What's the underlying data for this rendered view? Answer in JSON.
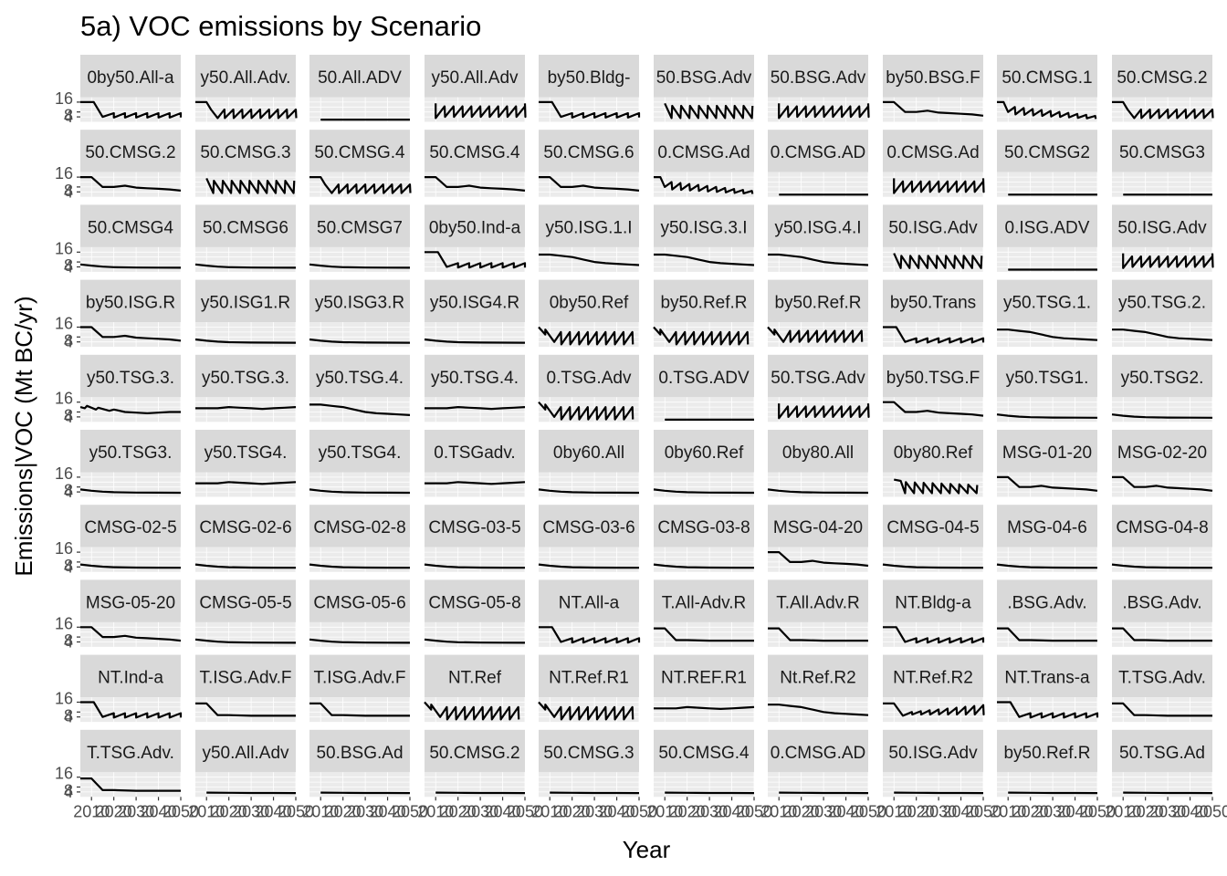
{
  "chart_data": {
    "type": "line",
    "title": "5a) VOC emissions by Scenario",
    "xlabel": "Year",
    "ylabel": "Emissions|VOC (Mt BC/yr)",
    "y_ticks": [
      "16",
      "4",
      "8"
    ],
    "x_ticks": [
      "2010",
      "2020",
      "2030",
      "2040",
      "2050"
    ],
    "ylim": [
      0,
      20
    ],
    "xlim": [
      2005,
      2050
    ],
    "grid": true,
    "facet_rows": 10,
    "facet_cols": 10,
    "panels": [
      {
        "label": "0by50.All-a",
        "type": "cut"
      },
      {
        "label": "y50.All.Adv.",
        "type": "sawC"
      },
      {
        "label": "50.All.ADV",
        "type": "flat"
      },
      {
        "label": "y50.All.Adv",
        "type": "sawU"
      },
      {
        "label": "by50.Bldg-",
        "type": "cut"
      },
      {
        "label": "50.BSG.Adv",
        "type": "sawF"
      },
      {
        "label": "50.BSG.Adv",
        "type": "sawU"
      },
      {
        "label": "by50.BSG.F",
        "type": "smooth"
      },
      {
        "label": "50.CMSG.1",
        "type": "sawD"
      },
      {
        "label": "50.CMSG.2",
        "type": "sawC"
      },
      {
        "label": "50.CMSG.2",
        "type": "smooth"
      },
      {
        "label": "50.CMSG.3",
        "type": "sawF"
      },
      {
        "label": "50.CMSG.4",
        "type": "sawC"
      },
      {
        "label": "50.CMSG.4",
        "type": "smooth"
      },
      {
        "label": "50.CMSG.6",
        "type": "smooth"
      },
      {
        "label": "0.CMSG.Ad",
        "type": "sawD"
      },
      {
        "label": "0.CMSG.AD",
        "type": "flat"
      },
      {
        "label": "0.CMSG.Ad",
        "type": "sawU"
      },
      {
        "label": "50.CMSG2",
        "type": "flat"
      },
      {
        "label": "50.CMSG3",
        "type": "flat"
      },
      {
        "label": "50.CMSG4",
        "type": "flatHi"
      },
      {
        "label": "50.CMSG6",
        "type": "flatHi"
      },
      {
        "label": "50.CMSG7",
        "type": "flatHi"
      },
      {
        "label": "0by50.Ind-a",
        "type": "cut"
      },
      {
        "label": "y50.ISG.1.I",
        "type": "hump"
      },
      {
        "label": "y50.ISG.3.I",
        "type": "hump"
      },
      {
        "label": "y50.ISG.4.I",
        "type": "hump"
      },
      {
        "label": "50.ISG.Adv",
        "type": "sawF"
      },
      {
        "label": "0.ISG.ADV",
        "type": "flat"
      },
      {
        "label": "50.ISG.Adv",
        "type": "sawU"
      },
      {
        "label": "by50.ISG.R",
        "type": "smooth"
      },
      {
        "label": "y50.ISG1.R",
        "type": "flatHi"
      },
      {
        "label": "y50.ISG3.R",
        "type": "flatHi"
      },
      {
        "label": "y50.ISG4.R",
        "type": "flatHi"
      },
      {
        "label": "0by50.Ref",
        "type": "sawRef"
      },
      {
        "label": "by50.Ref.R",
        "type": "sawRef"
      },
      {
        "label": "by50.Ref.R",
        "type": "sawRefU"
      },
      {
        "label": "by50.Trans",
        "type": "cut"
      },
      {
        "label": "y50.TSG.1.",
        "type": "hump"
      },
      {
        "label": "y50.TSG.2.",
        "type": "hump"
      },
      {
        "label": "y50.TSG.3.",
        "type": "sawSmall"
      },
      {
        "label": "y50.TSG.3.",
        "type": "level"
      },
      {
        "label": "y50.TSG.4.",
        "type": "hump"
      },
      {
        "label": "y50.TSG.4.",
        "type": "level"
      },
      {
        "label": "0.TSG.Adv",
        "type": "sawRef"
      },
      {
        "label": "0.TSG.ADV",
        "type": "flat"
      },
      {
        "label": "50.TSG.Adv",
        "type": "sawU"
      },
      {
        "label": "by50.TSG.F",
        "type": "smooth"
      },
      {
        "label": "y50.TSG1.",
        "type": "flatHi"
      },
      {
        "label": "y50.TSG2.",
        "type": "flatHi"
      },
      {
        "label": "y50.TSG3.",
        "type": "flatHi"
      },
      {
        "label": "y50.TSG4.",
        "type": "level"
      },
      {
        "label": "y50.TSG4.",
        "type": "flatHi"
      },
      {
        "label": "0.TSGadv.",
        "type": "level"
      },
      {
        "label": "0by60.All",
        "type": "flatHi"
      },
      {
        "label": "0by60.Ref",
        "type": "flatHi"
      },
      {
        "label": "0by80.All",
        "type": "flatHi"
      },
      {
        "label": "0by80.Ref",
        "type": "sawDec"
      },
      {
        "label": "MSG-01-20",
        "type": "smooth"
      },
      {
        "label": "MSG-02-20",
        "type": "smooth"
      },
      {
        "label": "CMSG-02-5",
        "type": "flatHi"
      },
      {
        "label": "CMSG-02-6",
        "type": "flatHi"
      },
      {
        "label": "CMSG-02-8",
        "type": "flatHi"
      },
      {
        "label": "CMSG-03-5",
        "type": "flatHi"
      },
      {
        "label": "CMSG-03-6",
        "type": "flatHi"
      },
      {
        "label": "CMSG-03-8",
        "type": "flatHi"
      },
      {
        "label": "MSG-04-20",
        "type": "smooth"
      },
      {
        "label": "CMSG-04-5",
        "type": "flatHi"
      },
      {
        "label": "MSG-04-6",
        "type": "flatHi"
      },
      {
        "label": "CMSG-04-8",
        "type": "flatHi"
      },
      {
        "label": "MSG-05-20",
        "type": "smooth"
      },
      {
        "label": "CMSG-05-5",
        "type": "flatHi"
      },
      {
        "label": "CMSG-05-6",
        "type": "flatHi"
      },
      {
        "label": "CMSG-05-8",
        "type": "flatHi"
      },
      {
        "label": "NT.All-a",
        "type": "cut"
      },
      {
        "label": "T.All-Adv.R",
        "type": "step"
      },
      {
        "label": "T.All.Adv.R",
        "type": "step"
      },
      {
        "label": "NT.Bldg-a",
        "type": "cut"
      },
      {
        "label": ".BSG.Adv.",
        "type": "step"
      },
      {
        "label": ".BSG.Adv.",
        "type": "step"
      },
      {
        "label": "NT.Ind-a",
        "type": "cut"
      },
      {
        "label": "T.ISG.Adv.F",
        "type": "step"
      },
      {
        "label": "T.ISG.Adv.F",
        "type": "step"
      },
      {
        "label": "NT.Ref",
        "type": "sawRef"
      },
      {
        "label": "NT.Ref.R1",
        "type": "sawRef"
      },
      {
        "label": "NT.REF.R1",
        "type": "level"
      },
      {
        "label": "Nt.Ref.R2",
        "type": "hump"
      },
      {
        "label": "NT.Ref.R2",
        "type": "sawInc"
      },
      {
        "label": "NT.Trans-a",
        "type": "cut"
      },
      {
        "label": "T.TSG.Adv.",
        "type": "step"
      },
      {
        "label": "T.TSG.Adv.",
        "type": "step"
      },
      {
        "label": "y50.All.Adv",
        "type": "tiny"
      },
      {
        "label": "50.BSG.Ad",
        "type": "tiny"
      },
      {
        "label": "50.CMSG.2",
        "type": "tiny"
      },
      {
        "label": "50.CMSG.3",
        "type": "tiny"
      },
      {
        "label": "50.CMSG.4",
        "type": "tiny"
      },
      {
        "label": "0.CMSG.AD",
        "type": "tiny"
      },
      {
        "label": "50.ISG.Adv",
        "type": "tiny"
      },
      {
        "label": "by50.Ref.R",
        "type": "tiny"
      },
      {
        "label": "50.TSG.Ad",
        "type": "tiny"
      }
    ]
  }
}
